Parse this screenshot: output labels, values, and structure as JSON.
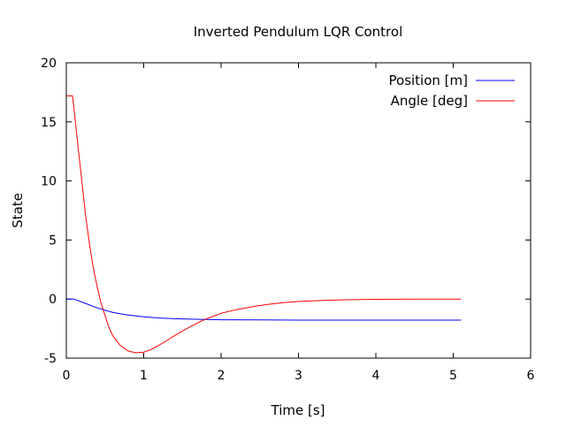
{
  "chart_data": {
    "type": "line",
    "title": "Inverted Pendulum LQR Control",
    "xlabel": "Time [s]",
    "ylabel": "State",
    "xlim": [
      0,
      6
    ],
    "ylim": [
      -5,
      20
    ],
    "xticks": [
      0,
      1,
      2,
      3,
      4,
      5,
      6
    ],
    "yticks": [
      -5,
      0,
      5,
      10,
      15,
      20
    ],
    "grid": false,
    "legend_position": "top-right",
    "series": [
      {
        "name": "Position [m]",
        "color": "#0000ff",
        "x": [
          0,
          0.1,
          0.2,
          0.3,
          0.4,
          0.5,
          0.6,
          0.7,
          0.8,
          0.9,
          1.0,
          1.2,
          1.4,
          1.6,
          1.8,
          2.0,
          2.5,
          3.0,
          3.5,
          4.0,
          4.5,
          5.1
        ],
        "y": [
          0,
          0,
          -0.25,
          -0.5,
          -0.75,
          -0.95,
          -1.12,
          -1.25,
          -1.35,
          -1.43,
          -1.5,
          -1.6,
          -1.66,
          -1.7,
          -1.73,
          -1.75,
          -1.77,
          -1.78,
          -1.78,
          -1.78,
          -1.78,
          -1.78
        ]
      },
      {
        "name": "Angle [deg]",
        "color": "#ff0000",
        "x": [
          0,
          0.08,
          0.1,
          0.15,
          0.2,
          0.25,
          0.3,
          0.35,
          0.4,
          0.45,
          0.5,
          0.55,
          0.6,
          0.7,
          0.8,
          0.9,
          1.0,
          1.1,
          1.2,
          1.3,
          1.4,
          1.5,
          1.6,
          1.7,
          1.8,
          1.9,
          2.0,
          2.2,
          2.4,
          2.6,
          2.8,
          3.0,
          3.3,
          3.6,
          4.0,
          4.5,
          5.1
        ],
        "y": [
          17.2,
          17.2,
          16.0,
          13.0,
          10.0,
          7.0,
          4.6,
          2.6,
          1.0,
          -0.4,
          -1.4,
          -2.4,
          -3.1,
          -3.95,
          -4.4,
          -4.55,
          -4.5,
          -4.25,
          -3.9,
          -3.5,
          -3.1,
          -2.7,
          -2.35,
          -2.0,
          -1.7,
          -1.45,
          -1.2,
          -0.9,
          -0.65,
          -0.45,
          -0.3,
          -0.2,
          -0.12,
          -0.06,
          -0.02,
          0,
          0
        ]
      }
    ]
  }
}
